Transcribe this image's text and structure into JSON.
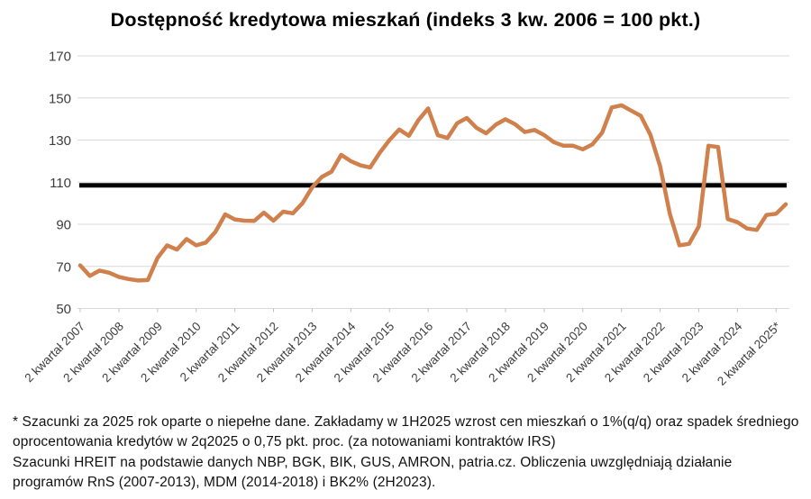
{
  "chart_data": {
    "type": "line",
    "title": "Dostępność kredytowa mieszkań (indeks 3 kw. 2006 = 100 pkt.)",
    "x_tick_labels": [
      "2 kwartał 2007",
      "2 kwartał 2008",
      "2 kwartał 2009",
      "2 kwartał 2010",
      "2 kwartał 2011",
      "2 kwartał 2012",
      "2 kwartał 2013",
      "2 kwartał 2014",
      "2 kwartał 2015",
      "2 kwartał 2016",
      "2 kwartał 2017",
      "2 kwartał 2018",
      "2 kwartał 2019",
      "2 kwartał 2020",
      "2 kwartał 2021",
      "2 kwartał 2022",
      "2 kwartał 2023",
      "2 kwartał 2024",
      "2 kwartał 2025*"
    ],
    "quarters_per_tick": 4,
    "series": [
      {
        "name": "Dostępność kredytowa mieszkań",
        "values": [
          70.5,
          65.5,
          68.0,
          67.0,
          65.0,
          64.0,
          63.3,
          63.5,
          74.0,
          80.0,
          78.0,
          83.0,
          80.0,
          81.3,
          86.5,
          94.7,
          92.3,
          91.7,
          91.6,
          95.5,
          91.7,
          96.0,
          95.2,
          100.0,
          107.5,
          112.5,
          115.0,
          123.0,
          120.0,
          118.0,
          117.0,
          124.0,
          130.0,
          135.0,
          132.0,
          139.5,
          145.0,
          132.3,
          131.0,
          138.0,
          140.5,
          135.8,
          133.2,
          137.3,
          139.9,
          137.5,
          133.8,
          134.8,
          132.4,
          129.0,
          127.3,
          127.3,
          125.6,
          128.0,
          133.5,
          145.5,
          146.5,
          144.0,
          141.5,
          132.5,
          117.5,
          95.0,
          80.0,
          80.7,
          89.0,
          127.3,
          126.7,
          92.5,
          91.0,
          88.0,
          87.3,
          94.4,
          95.0,
          99.5
        ]
      }
    ],
    "yticks": [
      50,
      70,
      90,
      110,
      130,
      150,
      170
    ],
    "ylim": [
      50,
      170
    ],
    "reference_line_value": 108.5,
    "grid": true,
    "legend": "none",
    "series_color": "#D0804C",
    "reference_line_color": "#000000",
    "gridline_color": "#D9D9D9",
    "tick_color": "#BFBFBF"
  },
  "footnotes": {
    "line1": "* Szacunki za 2025 rok oparte o niepełne dane. Zakładamy w 1H2025 wzrost cen mieszkań o 1%(q/q) oraz spadek średniego oprocentowania kredytów w 2q2025 o 0,75 pkt. proc. (za notowaniami kontraktów IRS)",
    "line2": "Szacunki HREIT na podstawie danych NBP, BGK, BIK, GUS, AMRON, patria.cz. Obliczenia uwzględniają działanie programów RnS (2007-2013), MDM (2014-2018) i BK2% (2H2023)."
  }
}
